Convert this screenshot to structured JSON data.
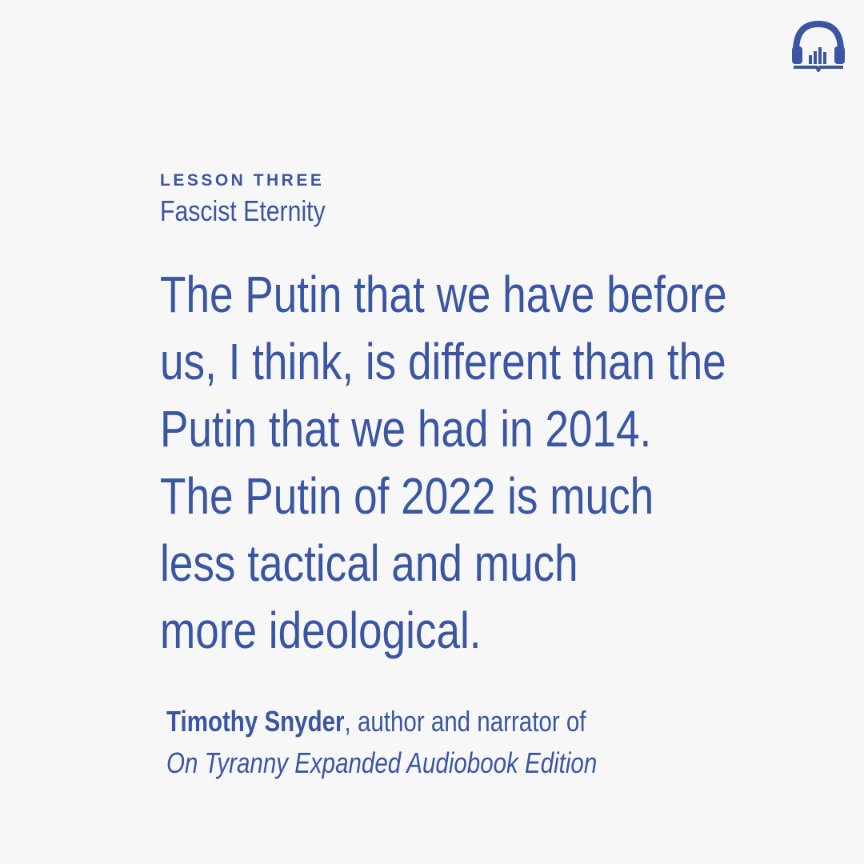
{
  "brand": {
    "logo_icon": "headphones-book-icon",
    "color": "#3a56a3"
  },
  "lesson": {
    "number_label": "LESSON THREE",
    "title": "Fascist Eternity"
  },
  "quote": {
    "lines": [
      "The Putin that we have before",
      "us, I think, is different than the",
      "Putin that we had in 2014.",
      "The Putin of 2022 is much",
      "less tactical and much",
      "more ideological."
    ]
  },
  "attribution": {
    "name": "Timothy Snyder",
    "role": ", author and narrator of",
    "work": "On Tyranny Expanded Audiobook Edition"
  },
  "colors": {
    "background": "#f7f7f7",
    "text": "#3a56a3"
  }
}
